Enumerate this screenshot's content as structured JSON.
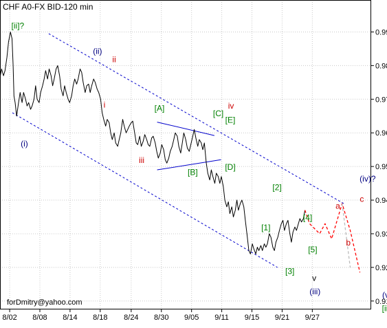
{
  "chart_data": {
    "type": "line",
    "title": "CHF A0-FX BID-120 min",
    "footer": "forDmitry@yahoo.com",
    "ylim": [
      0.9075,
      0.9995
    ],
    "xlim": [
      0,
      100
    ],
    "y_ticks": [
      0.99,
      0.98,
      0.97,
      0.96,
      0.95,
      0.94,
      0.93,
      0.92,
      0.91
    ],
    "y_tick_labels": [
      "0.99",
      "0.98",
      "0.97",
      "0.96",
      "0.95",
      "0.94",
      "0.93",
      "0.92",
      "0.91"
    ],
    "x_ticks": [
      {
        "label": "8/02",
        "x": 2.5
      },
      {
        "label": "8/08",
        "x": 10.3
      },
      {
        "label": "8/14",
        "x": 18.1
      },
      {
        "label": "8/18",
        "x": 25.9
      },
      {
        "label": "8/24",
        "x": 33.9
      },
      {
        "label": "8/30",
        "x": 41.7
      },
      {
        "label": "9/05",
        "x": 49.5
      },
      {
        "label": "9/11",
        "x": 57.3
      },
      {
        "label": "9/15",
        "x": 65.1
      },
      {
        "label": "9/21",
        "x": 72.9
      },
      {
        "label": "9/27",
        "x": 80.7
      }
    ],
    "grid": true,
    "series": [
      {
        "color": "#000000",
        "style": "solid",
        "points": [
          [
            0.0,
            0.9765
          ],
          [
            0.4,
            0.979
          ],
          [
            0.9,
            0.977
          ],
          [
            1.3,
            0.9785
          ],
          [
            1.8,
            0.9825
          ],
          [
            2.2,
            0.987
          ],
          [
            2.7,
            0.99
          ],
          [
            3.1,
            0.988
          ],
          [
            3.4,
            0.98
          ],
          [
            3.6,
            0.971
          ],
          [
            3.9,
            0.969
          ],
          [
            4.3,
            0.965
          ],
          [
            4.8,
            0.969
          ],
          [
            5.2,
            0.972
          ],
          [
            5.7,
            0.969
          ],
          [
            6.1,
            0.972
          ],
          [
            6.6,
            0.97
          ],
          [
            7.0,
            0.968
          ],
          [
            7.4,
            0.969
          ],
          [
            7.9,
            0.967
          ],
          [
            8.3,
            0.968
          ],
          [
            8.8,
            0.97
          ],
          [
            9.2,
            0.974
          ],
          [
            9.6,
            0.97
          ],
          [
            10.1,
            0.969
          ],
          [
            10.5,
            0.972
          ],
          [
            11.0,
            0.974
          ],
          [
            11.4,
            0.976
          ],
          [
            11.8,
            0.9785
          ],
          [
            12.3,
            0.976
          ],
          [
            12.7,
            0.979
          ],
          [
            13.2,
            0.977
          ],
          [
            13.6,
            0.974
          ],
          [
            14.0,
            0.976
          ],
          [
            14.5,
            0.979
          ],
          [
            14.9,
            0.98
          ],
          [
            15.4,
            0.977
          ],
          [
            15.8,
            0.973
          ],
          [
            16.3,
            0.971
          ],
          [
            16.7,
            0.974
          ],
          [
            17.1,
            0.972
          ],
          [
            17.6,
            0.97
          ],
          [
            18.0,
            0.969
          ],
          [
            18.5,
            0.971
          ],
          [
            18.9,
            0.974
          ],
          [
            19.3,
            0.976
          ],
          [
            19.8,
            0.9745
          ],
          [
            20.2,
            0.976
          ],
          [
            20.7,
            0.979
          ],
          [
            21.1,
            0.978
          ],
          [
            21.5,
            0.975
          ],
          [
            22.0,
            0.972
          ],
          [
            22.4,
            0.974
          ],
          [
            22.9,
            0.9745
          ],
          [
            23.3,
            0.972
          ],
          [
            23.7,
            0.974
          ],
          [
            24.2,
            0.976
          ],
          [
            24.6,
            0.975
          ],
          [
            25.1,
            0.973
          ],
          [
            25.5,
            0.972
          ],
          [
            26.0,
            0.97
          ],
          [
            26.4,
            0.966
          ],
          [
            26.8,
            0.964
          ],
          [
            27.3,
            0.962
          ],
          [
            27.7,
            0.964
          ],
          [
            28.2,
            0.963
          ],
          [
            28.6,
            0.96
          ],
          [
            29.0,
            0.958
          ],
          [
            29.5,
            0.96
          ],
          [
            29.9,
            0.957
          ],
          [
            30.4,
            0.956
          ],
          [
            30.8,
            0.958
          ],
          [
            31.2,
            0.96
          ],
          [
            31.7,
            0.964
          ],
          [
            32.1,
            0.962
          ],
          [
            32.6,
            0.96
          ],
          [
            33.0,
            0.961
          ],
          [
            33.4,
            0.962
          ],
          [
            33.9,
            0.963
          ],
          [
            34.3,
            0.9635
          ],
          [
            34.8,
            0.96
          ],
          [
            35.2,
            0.957
          ],
          [
            35.6,
            0.9565
          ],
          [
            36.1,
            0.959
          ],
          [
            36.5,
            0.956
          ],
          [
            37.0,
            0.9575
          ],
          [
            37.4,
            0.9595
          ],
          [
            37.9,
            0.958
          ],
          [
            38.3,
            0.9565
          ],
          [
            38.7,
            0.956
          ],
          [
            39.2,
            0.9585
          ],
          [
            39.6,
            0.959
          ],
          [
            40.1,
            0.957
          ],
          [
            40.5,
            0.9545
          ],
          [
            40.9,
            0.9525
          ],
          [
            41.4,
            0.954
          ],
          [
            41.8,
            0.9565
          ],
          [
            42.3,
            0.955
          ],
          [
            42.7,
            0.952
          ],
          [
            43.1,
            0.951
          ],
          [
            43.6,
            0.9525
          ],
          [
            44.0,
            0.9545
          ],
          [
            44.5,
            0.956
          ],
          [
            44.9,
            0.958
          ],
          [
            45.3,
            0.96
          ],
          [
            45.8,
            0.959
          ],
          [
            46.2,
            0.956
          ],
          [
            46.7,
            0.954
          ],
          [
            47.1,
            0.957
          ],
          [
            47.5,
            0.96
          ],
          [
            48.0,
            0.958
          ],
          [
            48.4,
            0.9555
          ],
          [
            48.9,
            0.9545
          ],
          [
            49.3,
            0.9565
          ],
          [
            49.8,
            0.959
          ],
          [
            50.2,
            0.961
          ],
          [
            50.6,
            0.9585
          ],
          [
            51.1,
            0.956
          ],
          [
            51.5,
            0.958
          ],
          [
            52.0,
            0.957
          ],
          [
            52.4,
            0.955
          ],
          [
            52.8,
            0.957
          ],
          [
            53.3,
            0.951
          ],
          [
            53.7,
            0.948
          ],
          [
            54.2,
            0.946
          ],
          [
            54.6,
            0.949
          ],
          [
            55.0,
            0.947
          ],
          [
            55.5,
            0.945
          ],
          [
            55.9,
            0.948
          ],
          [
            56.4,
            0.947
          ],
          [
            56.8,
            0.945
          ],
          [
            57.2,
            0.947
          ],
          [
            57.7,
            0.944
          ],
          [
            58.1,
            0.94
          ],
          [
            58.6,
            0.938
          ],
          [
            59.0,
            0.9395
          ],
          [
            59.4,
            0.936
          ],
          [
            59.9,
            0.938
          ],
          [
            60.3,
            0.935
          ],
          [
            60.8,
            0.937
          ],
          [
            61.2,
            0.94
          ],
          [
            61.6,
            0.937
          ],
          [
            62.1,
            0.939
          ],
          [
            62.5,
            0.94
          ],
          [
            63.0,
            0.938
          ],
          [
            63.4,
            0.934
          ],
          [
            63.9,
            0.929
          ],
          [
            64.3,
            0.925
          ],
          [
            64.7,
            0.924
          ],
          [
            65.2,
            0.927
          ],
          [
            65.6,
            0.9255
          ],
          [
            66.1,
            0.924
          ],
          [
            66.5,
            0.926
          ],
          [
            66.9,
            0.925
          ],
          [
            67.4,
            0.9265
          ],
          [
            67.8,
            0.925
          ],
          [
            68.3,
            0.927
          ],
          [
            68.7,
            0.926
          ],
          [
            69.1,
            0.927
          ],
          [
            69.6,
            0.93
          ],
          [
            70.0,
            0.929
          ],
          [
            70.5,
            0.926
          ],
          [
            70.9,
            0.925
          ],
          [
            71.3,
            0.9275
          ],
          [
            71.8,
            0.929
          ],
          [
            72.2,
            0.931
          ],
          [
            72.7,
            0.933
          ],
          [
            73.1,
            0.934
          ],
          [
            73.5,
            0.931
          ],
          [
            74.0,
            0.933
          ],
          [
            74.4,
            0.934
          ],
          [
            74.9,
            0.93
          ],
          [
            75.3,
            0.9275
          ],
          [
            75.7,
            0.9305
          ],
          [
            76.2,
            0.932
          ],
          [
            76.6,
            0.931
          ],
          [
            77.1,
            0.933
          ],
          [
            77.5,
            0.9345
          ],
          [
            77.9,
            0.9335
          ],
          [
            78.4,
            0.9345
          ],
          [
            78.8,
            0.937
          ]
        ]
      },
      {
        "color": "#ff0000",
        "style": "dashed",
        "points": [
          [
            78.8,
            0.937
          ],
          [
            80.0,
            0.933
          ],
          [
            82.6,
            0.93
          ],
          [
            84.0,
            0.933
          ],
          [
            85.7,
            0.9285
          ],
          [
            88.4,
            0.939
          ],
          [
            90.5,
            0.931
          ],
          [
            93.0,
            0.9185
          ]
        ]
      },
      {
        "color": "#bbbbbb",
        "style": "dashed",
        "points": [
          [
            88.4,
            0.939
          ],
          [
            90.5,
            0.92
          ]
        ]
      }
    ],
    "trendlines": [
      {
        "color": "#0000cc",
        "style": "dashed",
        "points": [
          [
            12.6,
            0.9895
          ],
          [
            88.8,
            0.939
          ]
        ]
      },
      {
        "color": "#0000cc",
        "style": "dashed",
        "points": [
          [
            3.2,
            0.966
          ],
          [
            71.7,
            0.92
          ]
        ]
      },
      {
        "color": "#0000cc",
        "style": "solid",
        "points": [
          [
            40.6,
            0.9632
          ],
          [
            55.4,
            0.9592
          ]
        ]
      },
      {
        "color": "#0000cc",
        "style": "solid",
        "points": [
          [
            40.6,
            0.949
          ],
          [
            57.1,
            0.952
          ]
        ]
      }
    ],
    "annotations": [
      {
        "text": "[ii]?",
        "x": 4.6,
        "y": 0.991,
        "color": "#008000"
      },
      {
        "text": "(ii)",
        "x": 25.2,
        "y": 0.9835,
        "color": "#000080"
      },
      {
        "text": "ii",
        "x": 29.5,
        "y": 0.981,
        "color": "#cc0000"
      },
      {
        "text": "i",
        "x": 27.0,
        "y": 0.9675,
        "color": "#cc0000"
      },
      {
        "text": "(i)",
        "x": 6.3,
        "y": 0.956,
        "color": "#000080"
      },
      {
        "text": "iii",
        "x": 36.6,
        "y": 0.951,
        "color": "#cc0000"
      },
      {
        "text": "[A]",
        "x": 41.2,
        "y": 0.9665,
        "color": "#008000"
      },
      {
        "text": "[B]",
        "x": 49.8,
        "y": 0.9475,
        "color": "#008000"
      },
      {
        "text": "[C]",
        "x": 56.4,
        "y": 0.965,
        "color": "#008000"
      },
      {
        "text": "[D]",
        "x": 59.5,
        "y": 0.949,
        "color": "#008000"
      },
      {
        "text": "[E]",
        "x": 59.5,
        "y": 0.963,
        "color": "#008000"
      },
      {
        "text": "iv",
        "x": 59.7,
        "y": 0.9672,
        "color": "#cc0000"
      },
      {
        "text": "[2]",
        "x": 71.6,
        "y": 0.943,
        "color": "#008000"
      },
      {
        "text": "[1]",
        "x": 68.7,
        "y": 0.931,
        "color": "#008000"
      },
      {
        "text": "[3]",
        "x": 74.9,
        "y": 0.918,
        "color": "#008000"
      },
      {
        "text": "v",
        "x": 81.2,
        "y": 0.916,
        "color": "#000000"
      },
      {
        "text": "[4]",
        "x": 79.5,
        "y": 0.934,
        "color": "#008000"
      },
      {
        "text": "[5]",
        "x": 80.8,
        "y": 0.9245,
        "color": "#008000"
      },
      {
        "text": "(iii)",
        "x": 81.4,
        "y": 0.912,
        "color": "#000080"
      },
      {
        "text": "a",
        "x": 87.3,
        "y": 0.9375,
        "color": "#cc0000"
      },
      {
        "text": "b",
        "x": 90.0,
        "y": 0.9265,
        "color": "#cc0000"
      },
      {
        "text": "c",
        "x": 93.5,
        "y": 0.9395,
        "color": "#cc0000"
      },
      {
        "text": "(iv)?",
        "x": 95.0,
        "y": 0.9455,
        "color": "#000080"
      },
      {
        "text": "(v)",
        "x": 100.0,
        "y": 0.911,
        "color": "#000080"
      },
      {
        "text": "[iii]",
        "x": 100.0,
        "y": 0.907,
        "color": "#008000"
      }
    ]
  }
}
